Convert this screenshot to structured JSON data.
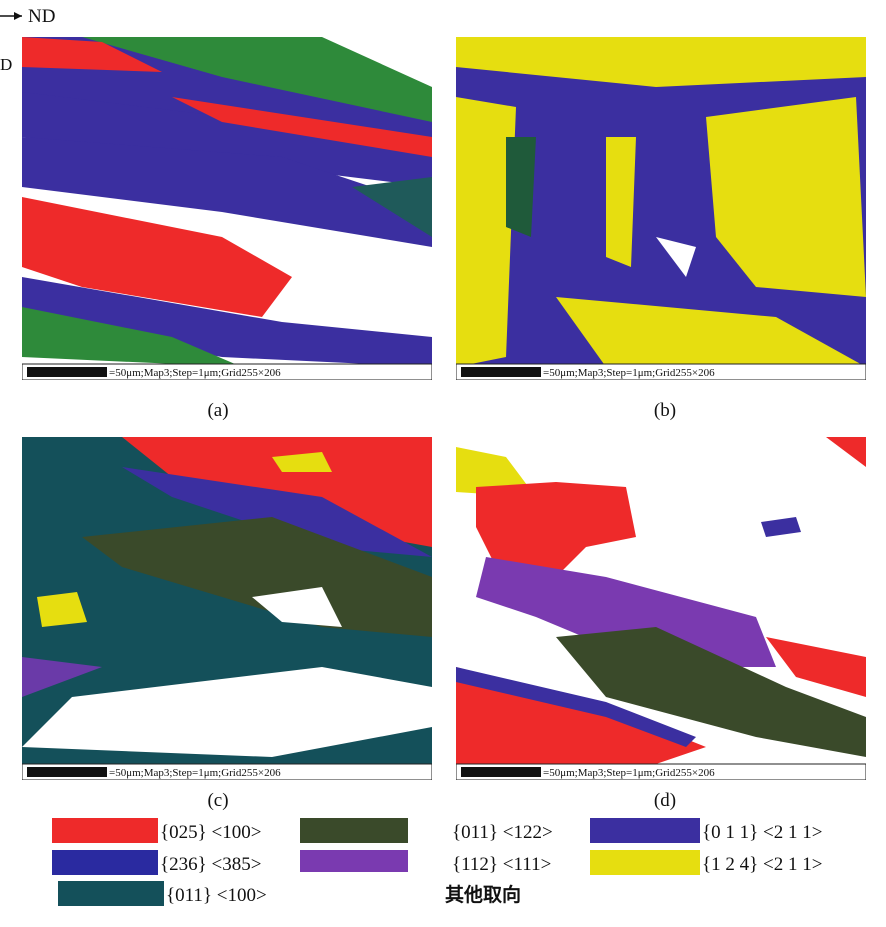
{
  "header": {
    "axis_label": "ND",
    "cut_label": "D"
  },
  "panels": [
    {
      "label": "(a)",
      "scale_text": "=50μm;Map3;Step=1μm;Grid255×206"
    },
    {
      "label": "(b)",
      "scale_text": "=50μm;Map3;Step=1μm;Grid255×206"
    },
    {
      "label": "(c)",
      "scale_text": "=50μm;Map3;Step=1μm;Grid255×206"
    },
    {
      "label": "(d)",
      "scale_text": "=50μm;Map3;Step=1μm;Grid255×206"
    }
  ],
  "legend": [
    "{025} <100>",
    "{011} <122>",
    "{0 1 1} <2 1 1>",
    "{236} <385>",
    "{112} <111>",
    "{1 2 4} <2 1 1>",
    "{011} <100>",
    "其他取向"
  ]
}
